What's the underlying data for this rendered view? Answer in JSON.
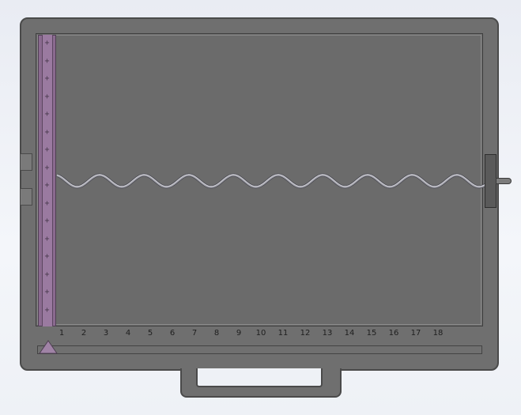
{
  "scale": {
    "labels": [
      "1",
      "2",
      "3",
      "4",
      "5",
      "6",
      "7",
      "8",
      "9",
      "10",
      "11",
      "12",
      "13",
      "14",
      "15",
      "16",
      "17",
      "18"
    ]
  },
  "rail": {
    "marker_symbol": "+",
    "marker_count": 16
  },
  "colors": {
    "case": "#6f6f6f",
    "rail": "#8a6a8f",
    "wave": "#9a9aa2",
    "background": "#eef1f6"
  },
  "icons": {
    "slider": "triangle-slider-icon",
    "clamp": "clamp-icon"
  }
}
